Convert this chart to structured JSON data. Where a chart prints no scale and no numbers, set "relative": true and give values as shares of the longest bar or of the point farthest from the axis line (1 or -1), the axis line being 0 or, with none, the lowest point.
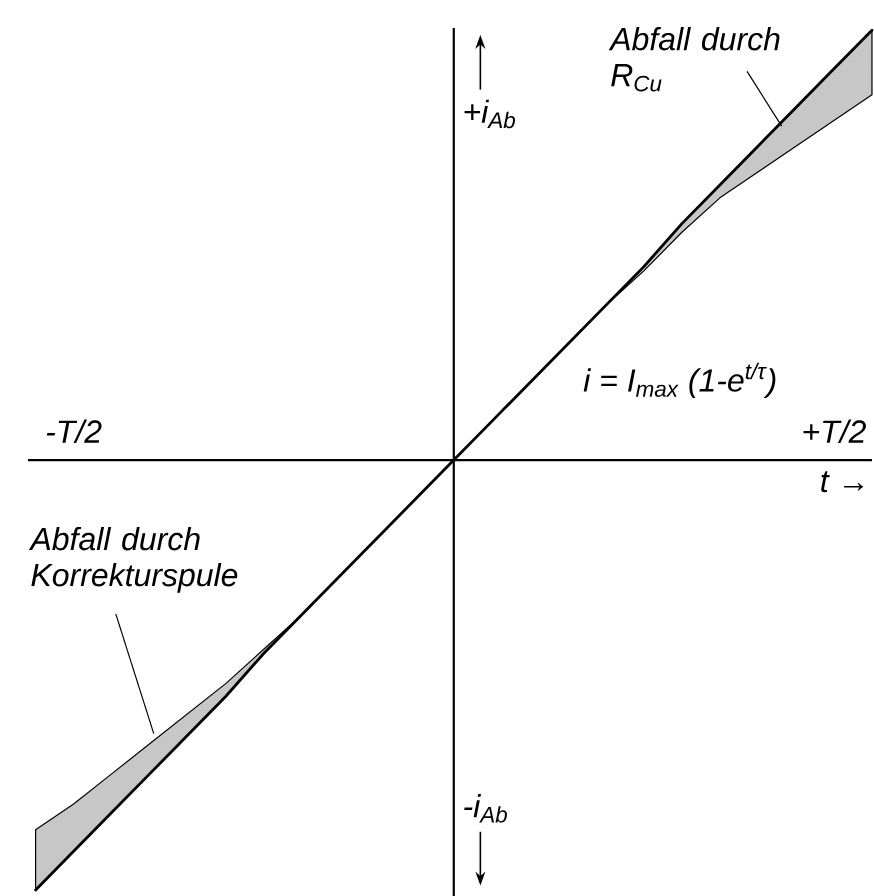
{
  "chart_data": {
    "type": "line",
    "relative": true,
    "categories": [
      null,
      "-T/2",
      null,
      null,
      null,
      null,
      null,
      null,
      null,
      null,
      null,
      null,
      null,
      null,
      null,
      null,
      null,
      null,
      null,
      null,
      null,
      "+T/2",
      null
    ],
    "xlabel": "t →",
    "ylabel": "+i$_{Ab}$",
    "series": [
      {
        "color": "#000000",
        "values": [
          -1.0,
          -0.91,
          -0.82,
          -0.73,
          -0.64,
          -0.55,
          -0.45,
          -0.36,
          -0.27,
          -0.18,
          -0.09,
          0,
          0.09,
          0.18,
          0.27,
          0.36,
          0.45,
          0.55,
          0.64,
          0.73,
          0.82,
          0.91,
          1.0
        ],
        "lower": [
          -1.0,
          -0.91,
          -0.82,
          -0.73,
          -0.64,
          -0.55,
          -0.45,
          -0.36,
          -0.27,
          -0.18,
          -0.09,
          0,
          0.09,
          0.18,
          0.27,
          0.36,
          0.44,
          0.53,
          0.61,
          0.67,
          0.73,
          0.79,
          0.85
        ],
        "upper": [
          -0.86,
          -0.8,
          -0.73,
          -0.66,
          -0.59,
          -0.52,
          -0.44,
          -0.36,
          -0.27,
          -0.18,
          -0.09,
          0,
          0.09,
          0.18,
          0.27,
          0.36,
          0.45,
          0.55,
          0.64,
          0.73,
          0.82,
          0.91,
          1.0
        ]
      }
    ],
    "annotations": [
      "Abfall durch R$_{Cu}$",
      "Abfall durch Korrekturspule",
      "i = I$_{max}$ (1-e$^{t/τ}$)",
      "-i$_{Ab}$"
    ],
    "marker": "none",
    "line_style": "solid"
  }
}
